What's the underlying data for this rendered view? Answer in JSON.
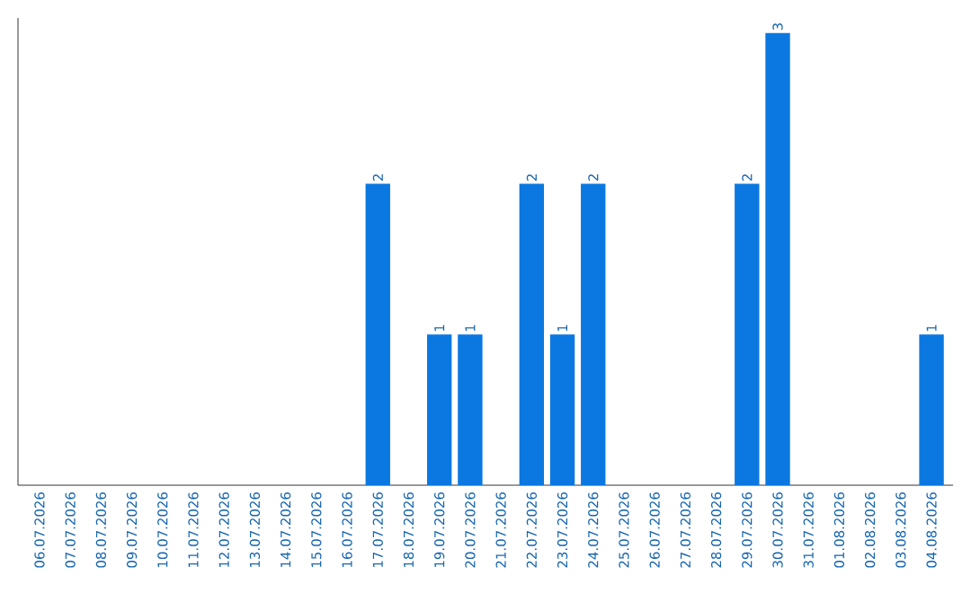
{
  "chart_data": {
    "type": "bar",
    "categories": [
      "06.07.2026",
      "07.07.2026",
      "08.07.2026",
      "09.07.2026",
      "10.07.2026",
      "11.07.2026",
      "12.07.2026",
      "13.07.2026",
      "14.07.2026",
      "15.07.2026",
      "16.07.2026",
      "17.07.2026",
      "18.07.2026",
      "19.07.2026",
      "20.07.2026",
      "21.07.2026",
      "22.07.2026",
      "23.07.2026",
      "24.07.2026",
      "25.07.2026",
      "26.07.2026",
      "27.07.2026",
      "28.07.2026",
      "29.07.2026",
      "30.07.2026",
      "31.07.2026",
      "01.08.2026",
      "02.08.2026",
      "03.08.2026",
      "04.08.2026"
    ],
    "values": [
      0,
      0,
      0,
      0,
      0,
      0,
      0,
      0,
      0,
      0,
      0,
      2,
      0,
      1,
      1,
      0,
      2,
      1,
      2,
      0,
      0,
      0,
      0,
      2,
      3,
      0,
      0,
      0,
      0,
      1
    ],
    "value_labels": [
      null,
      null,
      null,
      null,
      null,
      null,
      null,
      null,
      null,
      null,
      null,
      "2",
      null,
      "1",
      "1",
      null,
      "2",
      "1",
      "2",
      null,
      null,
      null,
      null,
      "2",
      "3",
      null,
      null,
      null,
      null,
      "1"
    ],
    "color": "#0a78e0",
    "ylim": [
      0,
      3.1
    ]
  }
}
